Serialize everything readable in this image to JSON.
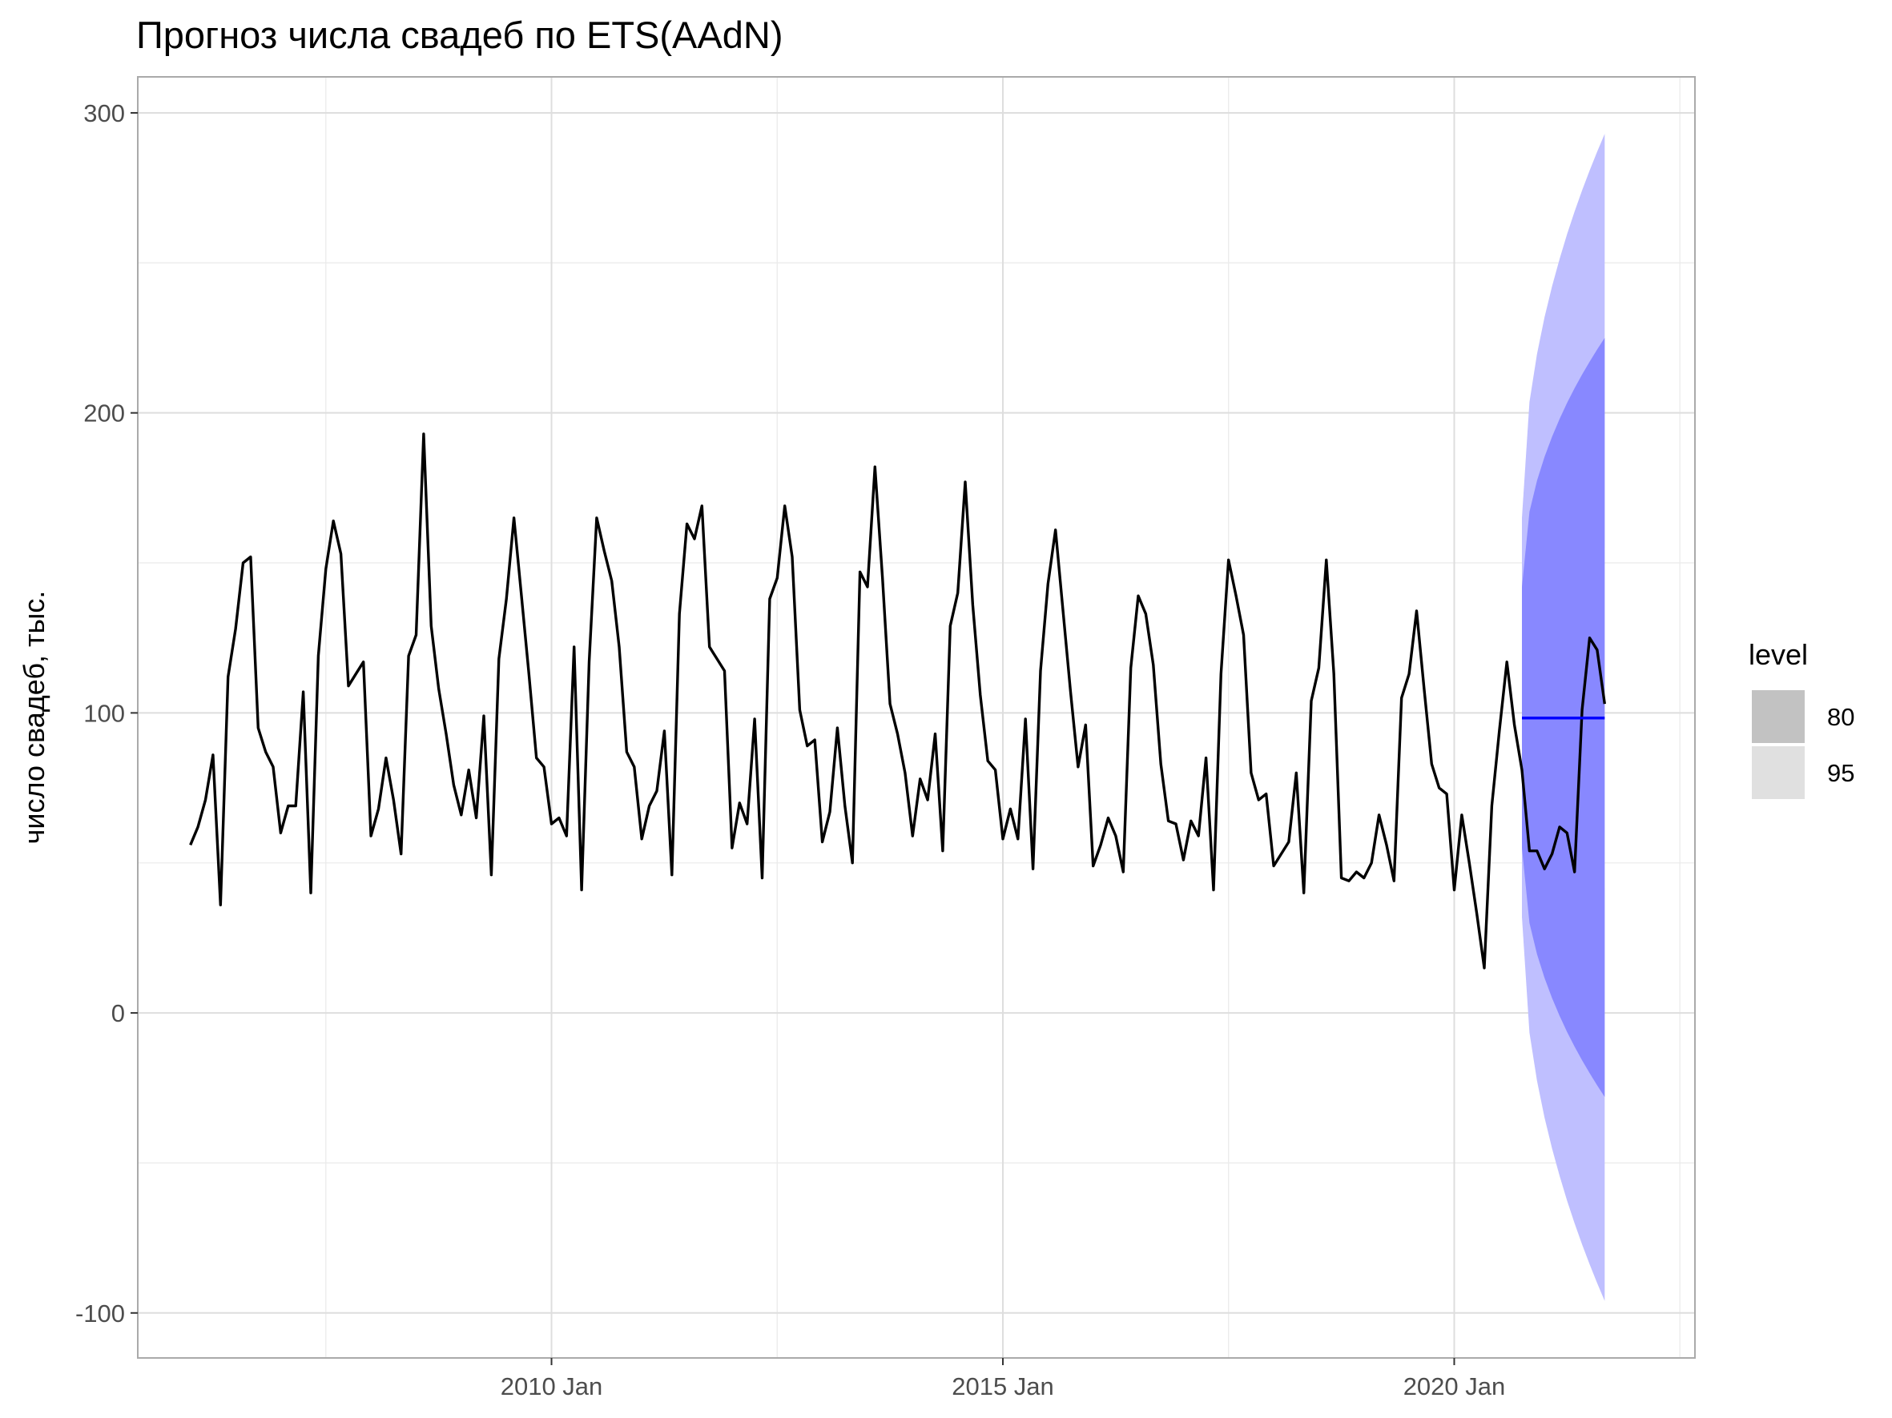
{
  "chart_data": {
    "type": "line",
    "title": "Прогноз числа свадеб по ETS(AAdN)",
    "xlabel": "",
    "ylabel": "число свадеб, тыс.",
    "x_ticks": [
      {
        "date": "2010-01",
        "label": "2010 Jan"
      },
      {
        "date": "2015-01",
        "label": "2015 Jan"
      },
      {
        "date": "2020-01",
        "label": "2020 Jan"
      }
    ],
    "y_ticks": [
      {
        "value": 300,
        "label": "300"
      },
      {
        "value": 200,
        "label": "200"
      },
      {
        "value": 100,
        "label": "100"
      },
      {
        "value": 0,
        "label": "0"
      },
      {
        "value": -100,
        "label": "-100"
      }
    ],
    "xlim": [
      "2005-06",
      "2022-09"
    ],
    "ylim": [
      -115,
      312
    ],
    "grid": true,
    "colors": {
      "series": "#000000",
      "forecast": "#0000ff",
      "band80": "#8888ff",
      "band95": "#bfbfff",
      "legend80": "#c2c2c2",
      "legend95": "#e0e0e0"
    },
    "legend": {
      "title": "level",
      "position": "right",
      "items": [
        {
          "label": "80",
          "swatch": "legend80"
        },
        {
          "label": "95",
          "swatch": "legend95"
        }
      ]
    },
    "history": {
      "start": "2006-01",
      "values": [
        56,
        62,
        71,
        86,
        36,
        112,
        128,
        150,
        152,
        95,
        87,
        82,
        60,
        69,
        69,
        107,
        40,
        119,
        148,
        164,
        153,
        109,
        113,
        117,
        59,
        68,
        85,
        71,
        53,
        119,
        126,
        193,
        129,
        108,
        93,
        76,
        66,
        81,
        65,
        99,
        46,
        118,
        138,
        165,
        139,
        113,
        85,
        82,
        63,
        65,
        59,
        122,
        41,
        117,
        165,
        154,
        144,
        122,
        87,
        82,
        58,
        69,
        74,
        94,
        46,
        133,
        163,
        158,
        169,
        122,
        118,
        114,
        55,
        70,
        63,
        98,
        45,
        138,
        145,
        169,
        152,
        101,
        89,
        91,
        57,
        67,
        95,
        69,
        50,
        147,
        142,
        182,
        145,
        103,
        93,
        80,
        59,
        78,
        71,
        93,
        54,
        129,
        140,
        177,
        136,
        106,
        84,
        81,
        58,
        68,
        58,
        98,
        48,
        114,
        143,
        161,
        134,
        107,
        82,
        96,
        49,
        56,
        65,
        59,
        47,
        115,
        139,
        133,
        116,
        83,
        64,
        63,
        51,
        64,
        59,
        85,
        41,
        113,
        151,
        139,
        126,
        80,
        71,
        73,
        49,
        53,
        57,
        80,
        40,
        104,
        115,
        151,
        113,
        45,
        44,
        47,
        45,
        50,
        66,
        56,
        44,
        105,
        113,
        134,
        108,
        83,
        75,
        73,
        41,
        66,
        50,
        33,
        15,
        69,
        94,
        117,
        96,
        81,
        54,
        54,
        48,
        53,
        62,
        60,
        47,
        101,
        125,
        121,
        103
      ]
    },
    "forecast": {
      "start": "2020-10",
      "end": "2021-09",
      "point": 98.3,
      "lo80_start": 55,
      "hi80_start": 142,
      "lo80_end": -28,
      "hi80_end": 225,
      "lo95_start": 32,
      "hi95_start": 165,
      "lo95_end": -96,
      "hi95_end": 293
    }
  }
}
